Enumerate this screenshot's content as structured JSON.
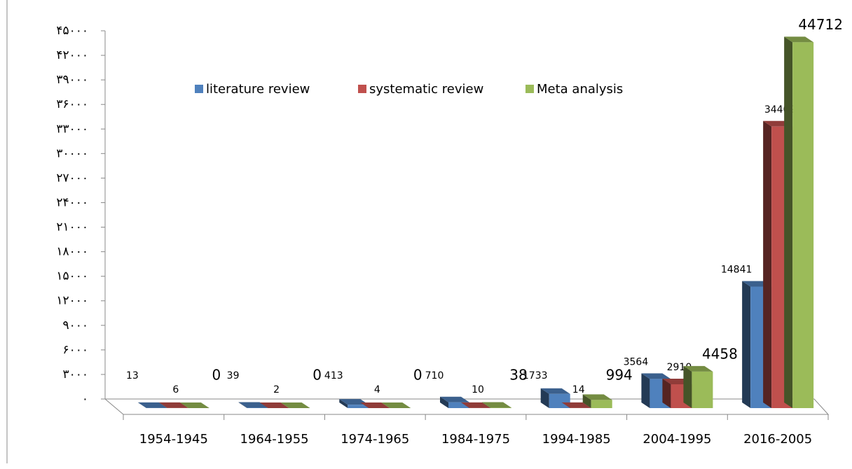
{
  "chart_data": {
    "type": "bar3d",
    "categories": [
      "1954-1945",
      "1964-1955",
      "1974-1965",
      "1984-1975",
      "1994-1985",
      "2004-1995",
      "2016-2005"
    ],
    "series": [
      {
        "name": "literature review",
        "color": "#4f81bd",
        "values": [
          13,
          39,
          413,
          710,
          1733,
          3564,
          14841
        ]
      },
      {
        "name": "systematic review",
        "color": "#c0504d",
        "values": [
          6,
          2,
          4,
          10,
          14,
          2910,
          34409
        ]
      },
      {
        "name": "Meta analysis",
        "color": "#9bbb59",
        "values": [
          0,
          0,
          0,
          38,
          994,
          4458,
          44712
        ]
      }
    ],
    "ylim": [
      0,
      45000
    ],
    "yticks": [
      {
        "value": 0,
        "label": "۰"
      },
      {
        "value": 3000,
        "label": "۳۰۰۰"
      },
      {
        "value": 6000,
        "label": "۶۰۰۰"
      },
      {
        "value": 9000,
        "label": "۹۰۰۰"
      },
      {
        "value": 12000,
        "label": "۱۲۰۰۰"
      },
      {
        "value": 15000,
        "label": "۱۵۰۰۰"
      },
      {
        "value": 18000,
        "label": "۱۸۰۰۰"
      },
      {
        "value": 21000,
        "label": "۲۱۰۰۰"
      },
      {
        "value": 24000,
        "label": "۲۴۰۰۰"
      },
      {
        "value": 27000,
        "label": "۲۷۰۰۰"
      },
      {
        "value": 30000,
        "label": "۳۰۰۰۰"
      },
      {
        "value": 33000,
        "label": "۳۳۰۰۰"
      },
      {
        "value": 36000,
        "label": "۳۶۰۰۰"
      },
      {
        "value": 39000,
        "label": "۳۹۰۰۰"
      },
      {
        "value": 42000,
        "label": "۴۲۰۰۰"
      },
      {
        "value": 45000,
        "label": "۴۵۰۰۰"
      }
    ],
    "legend": "top"
  }
}
